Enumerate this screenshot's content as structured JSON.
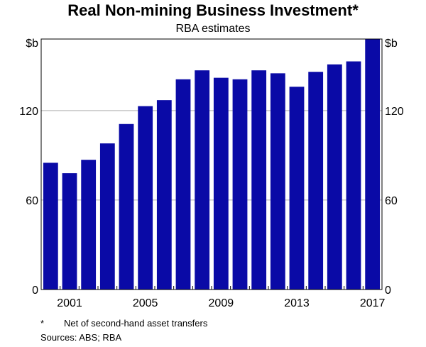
{
  "chart_data": {
    "type": "bar",
    "title": "Real Non-mining Business Investment*",
    "subtitle": "RBA estimates",
    "y_unit": "$b",
    "ylim": [
      0,
      168
    ],
    "yticks": [
      0,
      60,
      120
    ],
    "grid": true,
    "categories": [
      "2000",
      "2001",
      "2002",
      "2003",
      "2004",
      "2005",
      "2006",
      "2007",
      "2008",
      "2009",
      "2010",
      "2011",
      "2012",
      "2013",
      "2014",
      "2015",
      "2016",
      "2017"
    ],
    "x_tick_labels": [
      "2001",
      "2005",
      "2009",
      "2013",
      "2017"
    ],
    "values": [
      85,
      78,
      87,
      98,
      111,
      123,
      127,
      141,
      147,
      142,
      141,
      147,
      145,
      136,
      146,
      151,
      153,
      168
    ],
    "bar_color": "#0a0aa6"
  },
  "footnote": {
    "marker": "*",
    "text": "Net of second-hand asset transfers"
  },
  "sources": "Sources:   ABS; RBA"
}
